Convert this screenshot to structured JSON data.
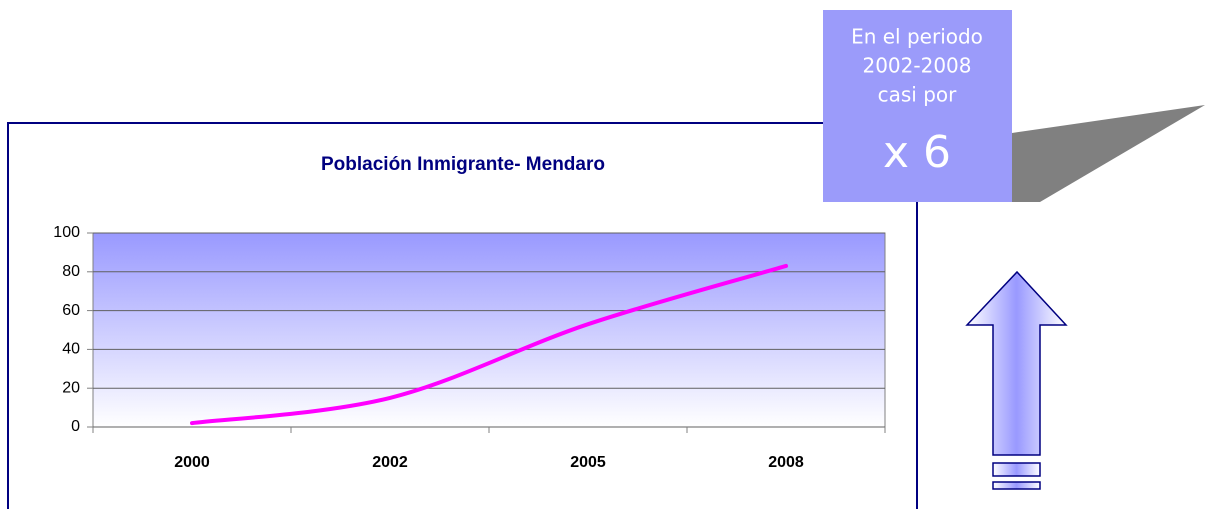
{
  "chart_data": {
    "type": "line",
    "title": "Población Inmigrante- Mendaro",
    "categories": [
      "2000",
      "2002",
      "2005",
      "2008"
    ],
    "series": [
      {
        "name": "Población Inmigrante",
        "color": "#ff00ff",
        "values": [
          2,
          15,
          53,
          83
        ]
      }
    ],
    "ylim": [
      0,
      100
    ],
    "yticks": [
      0,
      20,
      40,
      60,
      80,
      100
    ],
    "grid": true
  },
  "callout": {
    "lines": [
      "En el periodo",
      "2002-2008",
      "casi por"
    ],
    "highlight": "x 6"
  }
}
